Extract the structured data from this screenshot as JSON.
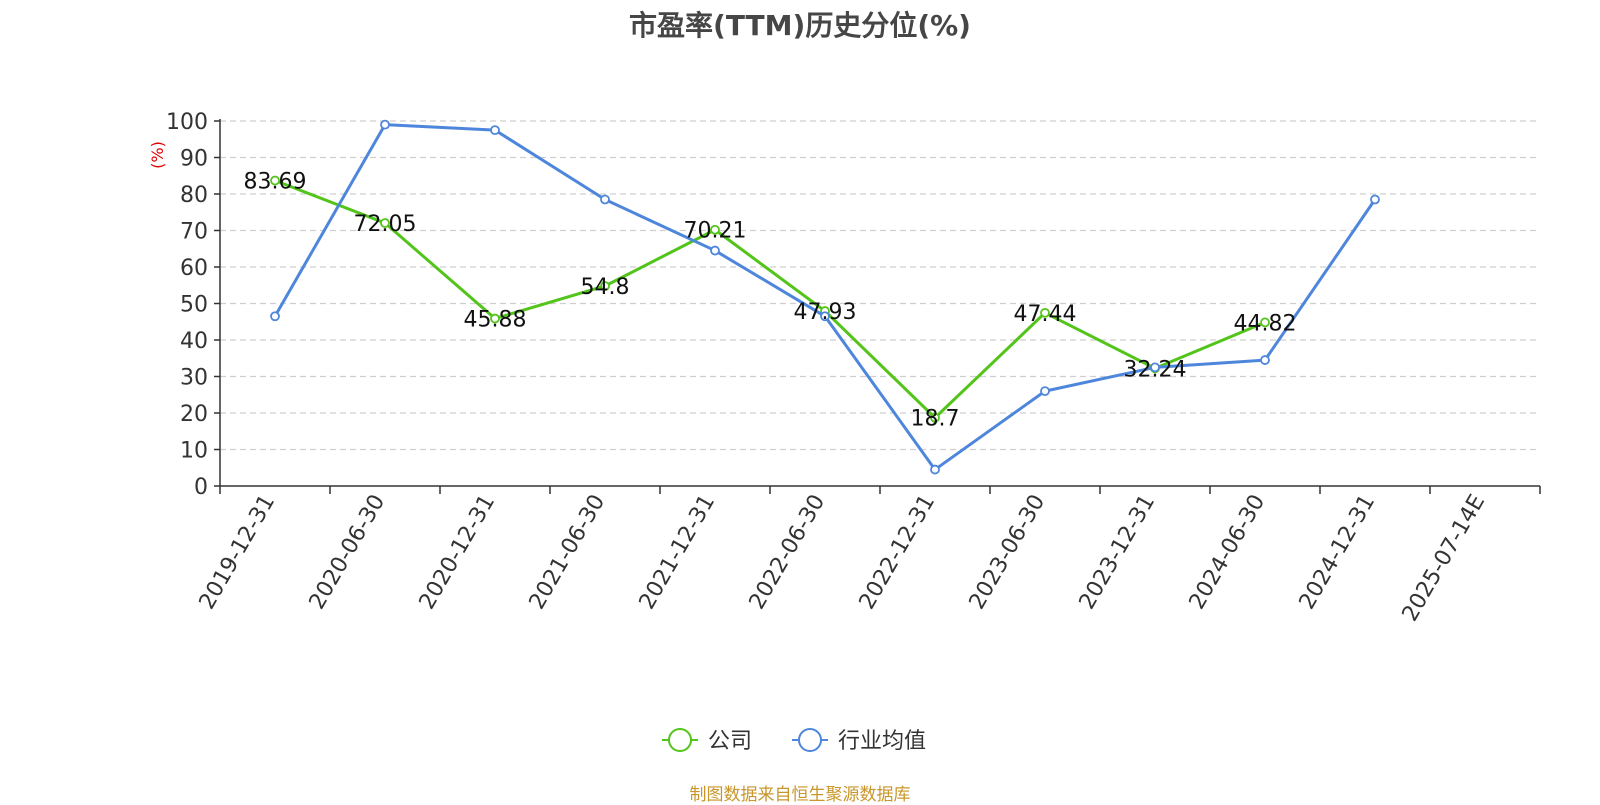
{
  "chart_data": {
    "type": "line",
    "title": "市盈率(TTM)历史分位(%)",
    "ylabel": "(%)",
    "xlabel": "",
    "categories": [
      "2019-12-31",
      "2020-06-30",
      "2020-12-31",
      "2021-06-30",
      "2021-12-31",
      "2022-06-30",
      "2022-12-31",
      "2023-06-30",
      "2023-12-31",
      "2024-06-30",
      "2024-12-31",
      "2025-07-14E"
    ],
    "ylim": [
      0,
      100
    ],
    "yticks": [
      0,
      10,
      20,
      30,
      40,
      50,
      60,
      70,
      80,
      90,
      100
    ],
    "grid": true,
    "legend_position": "bottom-center",
    "series": [
      {
        "name": "公司",
        "color": "#52c41a",
        "values": [
          83.69,
          72.05,
          45.88,
          54.8,
          70.21,
          47.93,
          18.7,
          47.44,
          32.24,
          44.82,
          null,
          null
        ],
        "data_labels": [
          "83.69",
          "72.05",
          "45.88",
          "54.8",
          "70.21",
          "47.93",
          "18.7",
          "47.44",
          "32.24",
          "44.82",
          null,
          null
        ]
      },
      {
        "name": "行业均值",
        "color": "#4e86dc",
        "values": [
          46.5,
          99,
          97.5,
          78.5,
          64.5,
          46.5,
          4.5,
          26,
          32.5,
          34.5,
          78.5,
          null
        ]
      }
    ]
  },
  "footer": {
    "source": "制图数据来自恒生聚源数据库"
  }
}
